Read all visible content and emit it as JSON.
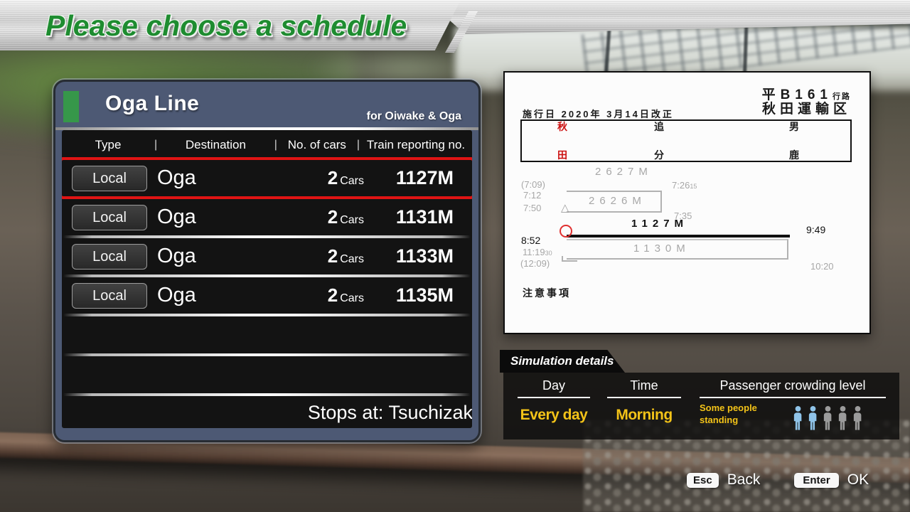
{
  "title_banner": {
    "text": "Please choose a schedule"
  },
  "schedule_panel": {
    "line_name": "Oga Line",
    "line_subtitle": "for Oiwake & Oga",
    "columns": {
      "type": "Type",
      "destination": "Destination",
      "cars": "No. of cars",
      "train_no": "Train reporting no."
    },
    "rows": [
      {
        "type": "Local",
        "destination": "Oga",
        "cars_count": "2",
        "cars_unit": "Cars",
        "train_no": "1127M",
        "selected": true
      },
      {
        "type": "Local",
        "destination": "Oga",
        "cars_count": "2",
        "cars_unit": "Cars",
        "train_no": "1131M",
        "selected": false
      },
      {
        "type": "Local",
        "destination": "Oga",
        "cars_count": "2",
        "cars_unit": "Cars",
        "train_no": "1133M",
        "selected": false
      },
      {
        "type": "Local",
        "destination": "Oga",
        "cars_count": "2",
        "cars_unit": "Cars",
        "train_no": "1135M",
        "selected": false
      }
    ],
    "stops_at": "Stops at: Tsuchizaki"
  },
  "document": {
    "route_number": "平B161",
    "route_suffix": "行路",
    "depot": "秋田運輸区",
    "effective_date": "施行日 2020年 3月14日改正",
    "stations": [
      {
        "top": "秋",
        "bottom": "田",
        "highlight": true
      },
      {
        "top": "追",
        "bottom": "分",
        "highlight": false
      },
      {
        "top": "男",
        "bottom": "鹿",
        "highlight": false
      }
    ],
    "notes_label": "注意事項",
    "diagram": {
      "train_2627": {
        "label": "2627M",
        "time_paren": "(7:09)",
        "time_dep": "7:12",
        "time_arr": "7:26",
        "time_arr_sub": "15"
      },
      "train_2626": {
        "label": "2626M",
        "time_dep": "7:50",
        "time_arr": "7:35"
      },
      "train_1127": {
        "label": "1127M",
        "time_dep": "8:52",
        "time_arr": "9:49"
      },
      "train_1130": {
        "label": "1130M",
        "time_arr": "10:20",
        "time_dep": "11:19",
        "time_dep_sub": "30",
        "time_paren": "(12:09)"
      }
    }
  },
  "simulation_details": {
    "title": "Simulation details",
    "day_label": "Day",
    "day_value": "Every day",
    "time_label": "Time",
    "time_value": "Morning",
    "crowding_label": "Passenger crowding level",
    "crowding_value": "Some people standing",
    "crowding_level": 2,
    "crowding_total": 5
  },
  "footer": {
    "esc_key": "Esc",
    "back_label": "Back",
    "enter_key": "Enter",
    "ok_label": "OK"
  },
  "colors": {
    "accent_green": "#36974a",
    "selection_red": "#e01414",
    "value_yellow": "#f3c318",
    "crowd_active": "#8fc3e8",
    "crowd_inactive": "#9b9b9b",
    "station_red": "#cc1111"
  }
}
